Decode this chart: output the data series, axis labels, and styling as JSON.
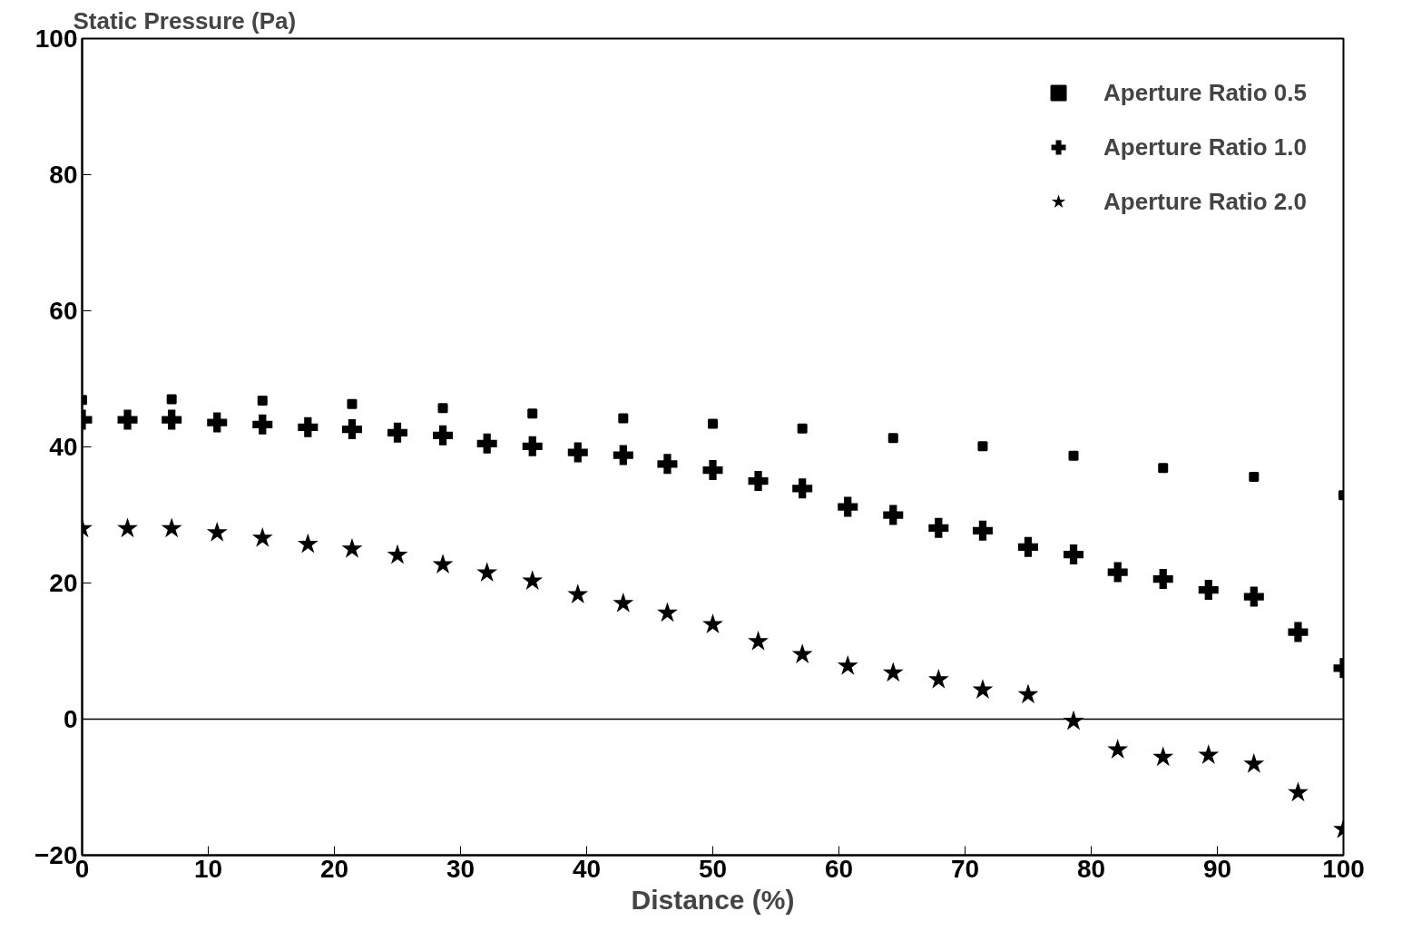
{
  "chart_data": {
    "type": "scatter",
    "ylabel": "Static Pressure (Pa)",
    "xlabel": "Distance (%)",
    "xlim": [
      0,
      100
    ],
    "xticks": [
      0,
      10,
      20,
      30,
      40,
      50,
      60,
      70,
      80,
      90,
      100
    ],
    "ylim": [
      -20,
      100
    ],
    "yticks": [
      -20,
      0,
      20,
      40,
      60,
      80,
      100
    ],
    "grid": false,
    "legend": "top right",
    "ref_lines": [
      {
        "axis": "y",
        "value": 0,
        "label": null,
        "color": "#000000"
      }
    ],
    "series": [
      {
        "name": "Aperture Ratio 0.5",
        "color": "#000000",
        "marker": "square",
        "x": [
          0,
          7.1,
          14.3,
          21.4,
          28.6,
          35.7,
          42.9,
          50,
          57.1,
          64.3,
          71.4,
          78.6,
          85.7,
          92.9,
          100
        ],
        "values": [
          46.9,
          47.0,
          46.8,
          46.3,
          45.7,
          44.9,
          44.2,
          43.4,
          42.7,
          41.3,
          40.1,
          38.7,
          36.9,
          35.6,
          32.9
        ]
      },
      {
        "name": "Aperture Ratio 1.0",
        "color": "#000000",
        "marker": "cross",
        "x": [
          0,
          3.6,
          7.1,
          10.7,
          14.3,
          17.9,
          21.4,
          25,
          28.6,
          32.1,
          35.7,
          39.3,
          42.9,
          46.4,
          50,
          53.6,
          57.1,
          60.7,
          64.3,
          67.9,
          71.4,
          75,
          78.6,
          82.1,
          85.7,
          89.3,
          92.9,
          96.4,
          100
        ],
        "values": [
          44.0,
          44.0,
          44.0,
          43.6,
          43.3,
          42.9,
          42.6,
          42.1,
          41.7,
          40.5,
          40.1,
          39.2,
          38.8,
          37.5,
          36.6,
          35.0,
          33.9,
          31.2,
          30.0,
          28.1,
          27.7,
          25.3,
          24.2,
          21.6,
          20.6,
          19.0,
          18.0,
          12.8,
          7.5
        ]
      },
      {
        "name": "Aperture Ratio 2.0",
        "color": "#000000",
        "marker": "star",
        "x": [
          0,
          3.6,
          7.1,
          10.7,
          14.3,
          17.9,
          21.4,
          25,
          28.6,
          32.1,
          35.7,
          39.3,
          42.9,
          46.4,
          50,
          53.6,
          57.1,
          60.7,
          64.3,
          67.9,
          71.4,
          75,
          78.6,
          82.1,
          85.7,
          89.3,
          92.9,
          96.4,
          100
        ],
        "values": [
          28.0,
          28.0,
          28.0,
          27.4,
          26.6,
          25.7,
          25.0,
          24.1,
          22.7,
          21.5,
          20.3,
          18.3,
          17.0,
          15.6,
          13.9,
          11.4,
          9.5,
          7.8,
          6.8,
          5.8,
          4.3,
          3.6,
          -0.3,
          -4.5,
          -5.6,
          -5.3,
          -6.6,
          -10.8,
          -16.2
        ]
      }
    ]
  }
}
